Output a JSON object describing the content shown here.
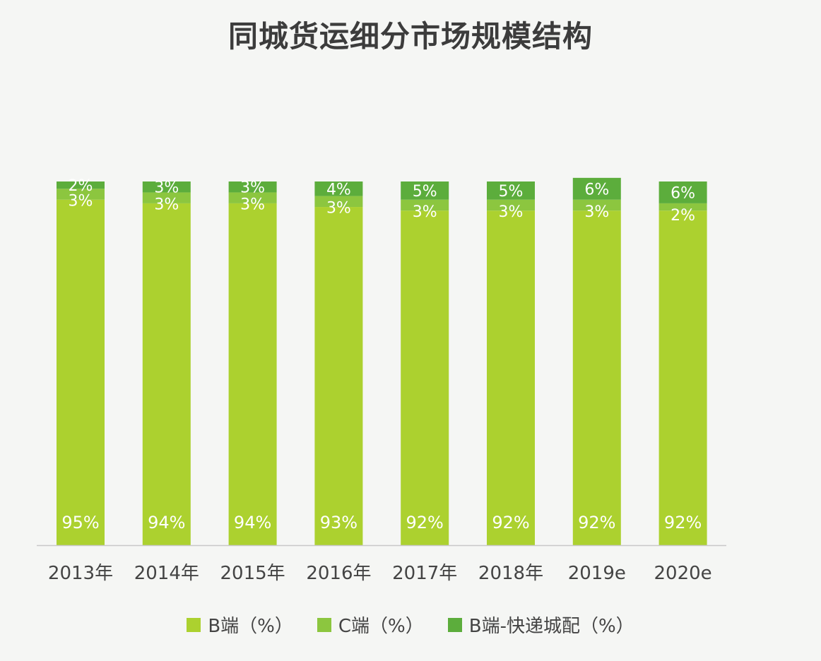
{
  "chart_data": {
    "type": "bar",
    "stacked": true,
    "percent": true,
    "title": "同城货运细分市场规模结构",
    "categories": [
      "2013年",
      "2014年",
      "2015年",
      "2016年",
      "2017年",
      "2018年",
      "2019e",
      "2020e"
    ],
    "series": [
      {
        "name": "B端（%）",
        "color": "#acd12f",
        "values": [
          95,
          94,
          94,
          93,
          92,
          92,
          92,
          92
        ]
      },
      {
        "name": "C端（%）",
        "color": "#8cc63f",
        "values": [
          3,
          3,
          3,
          3,
          3,
          3,
          3,
          2
        ]
      },
      {
        "name": "B端-快递城配（%）",
        "color": "#5cad3c",
        "values": [
          2,
          3,
          3,
          4,
          5,
          5,
          6,
          6
        ]
      }
    ],
    "data_labels": [
      [
        "95%",
        "94%",
        "94%",
        "93%",
        "92%",
        "92%",
        "92%",
        "92%"
      ],
      [
        "3%",
        "3%",
        "3%",
        "3%",
        "3%",
        "3%",
        "3%",
        "2%"
      ],
      [
        "2%",
        "3%",
        "3%",
        "4%",
        "5%",
        "5%",
        "6%",
        "6%"
      ]
    ],
    "ylim": [
      0,
      100
    ],
    "legend_position": "bottom",
    "grid": false
  }
}
